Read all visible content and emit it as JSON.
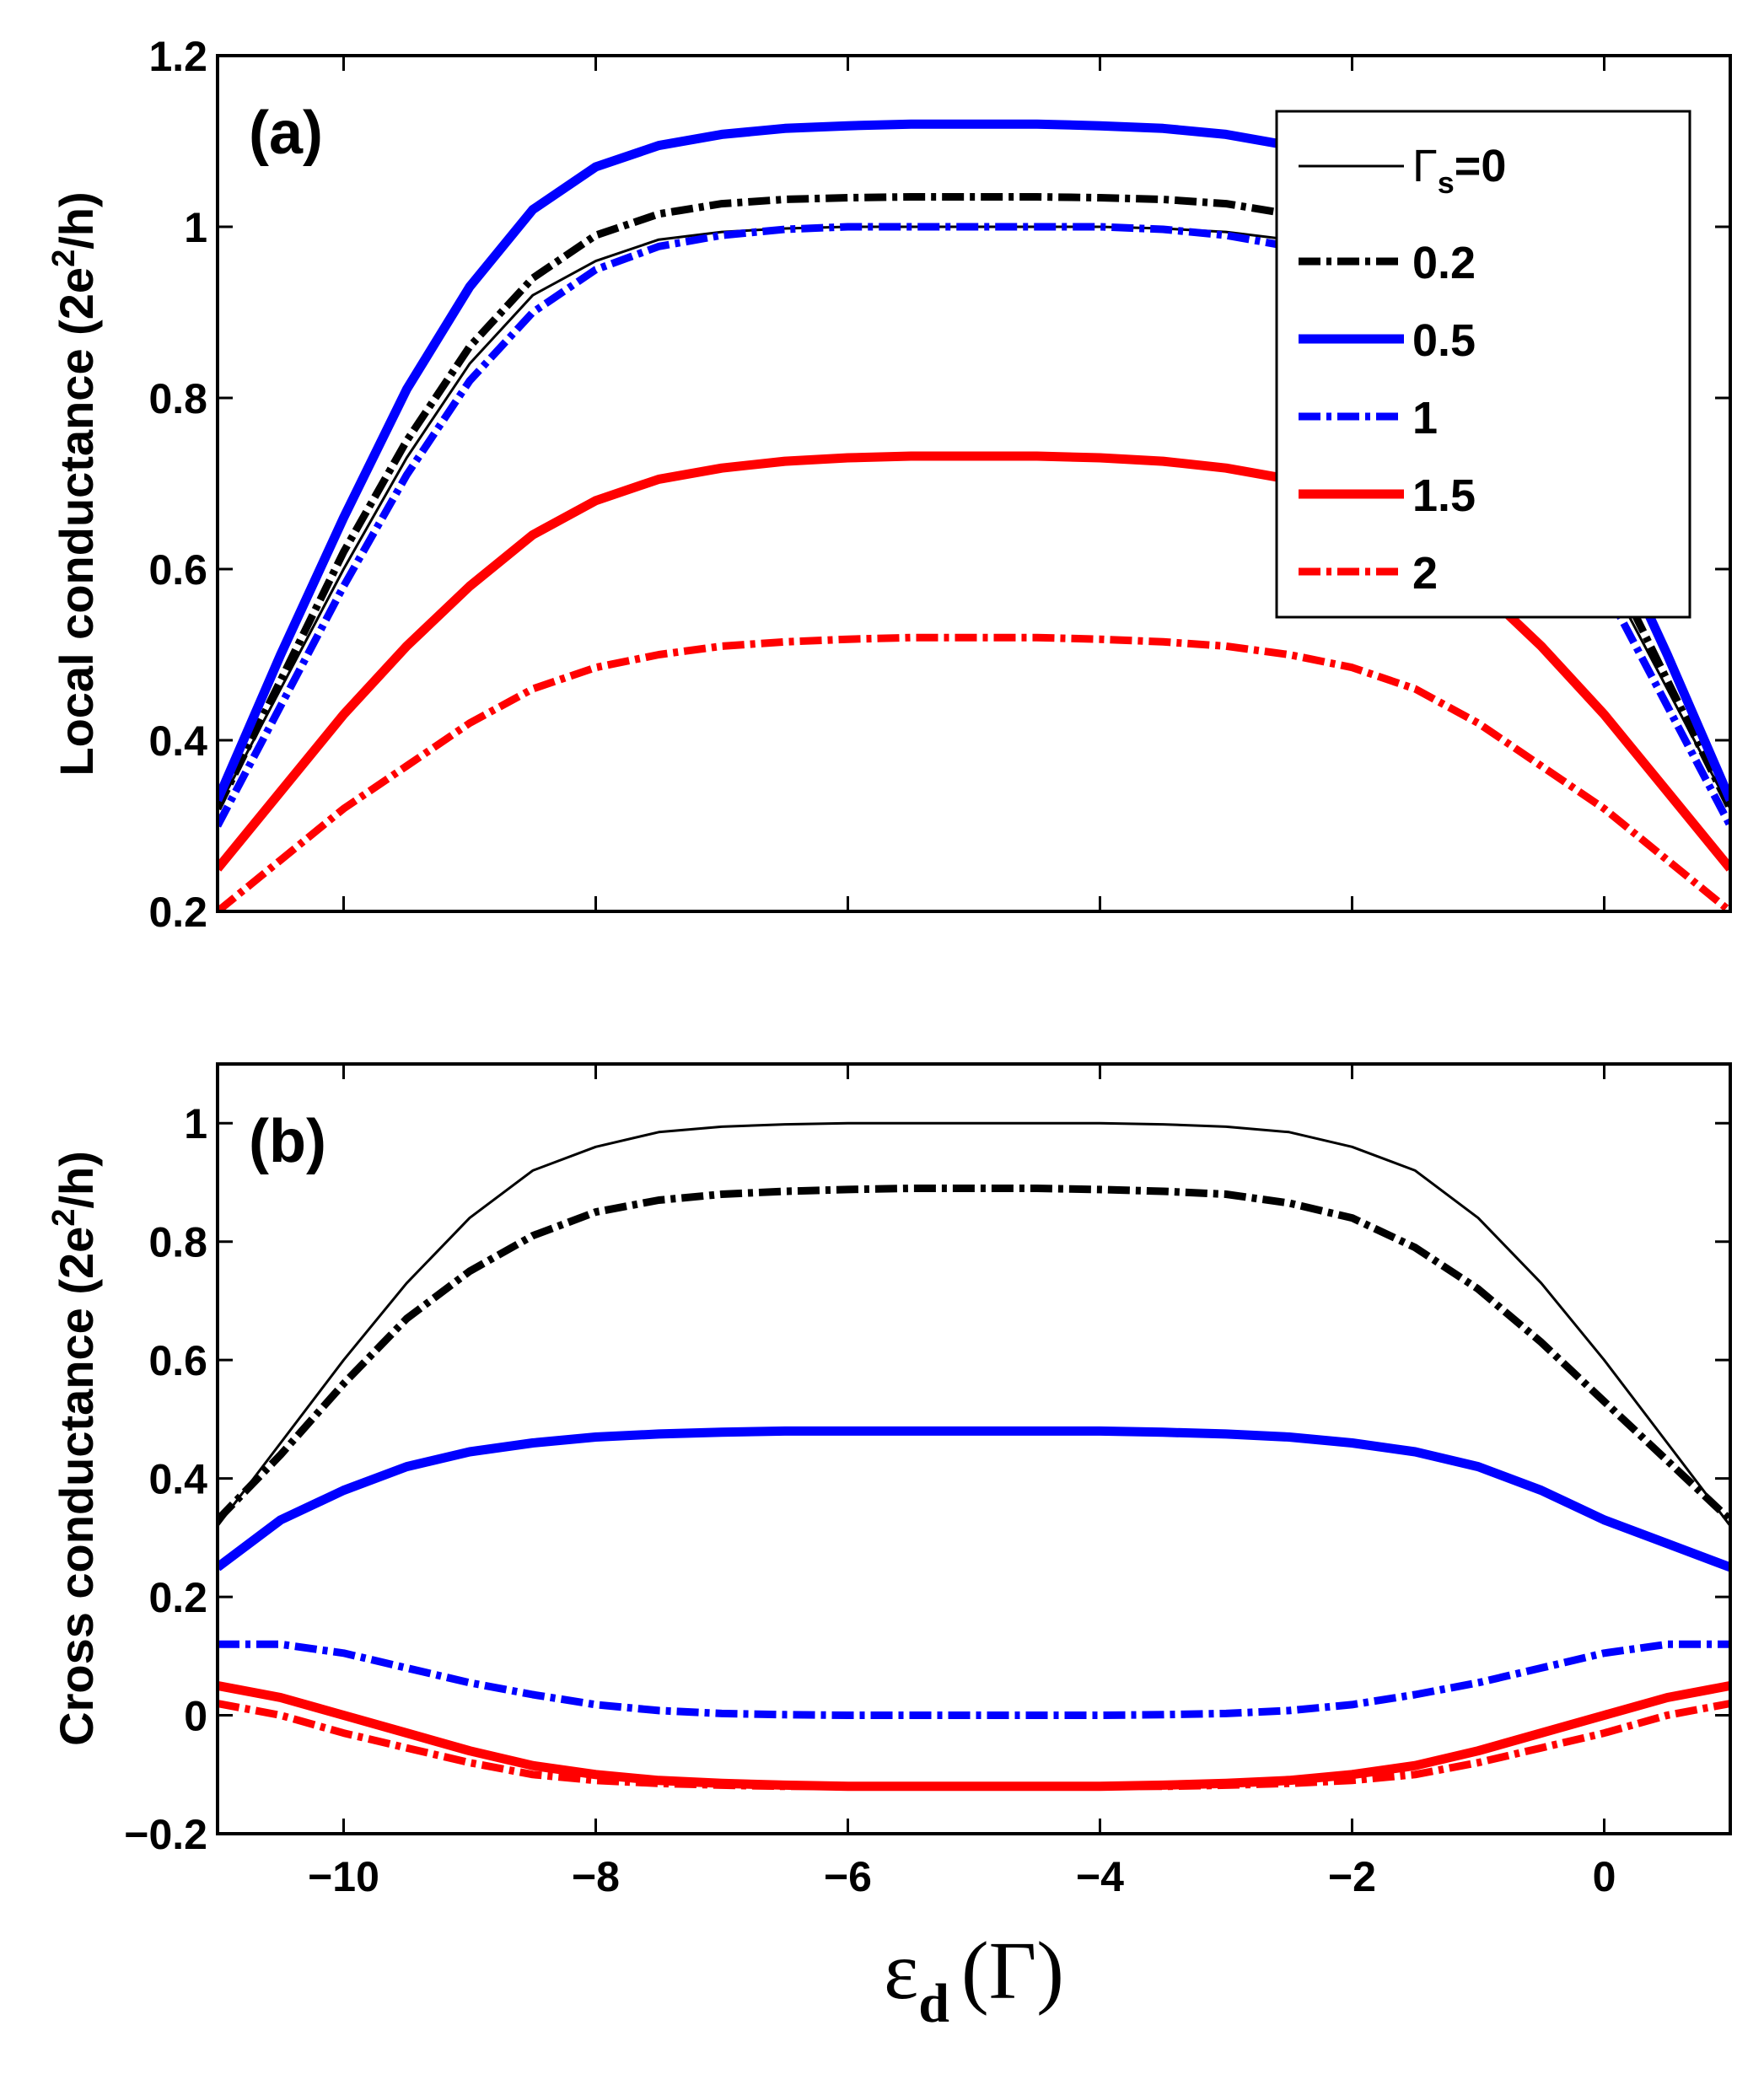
{
  "chart_data": [
    {
      "type": "line",
      "panel_label": "(a)",
      "title": "",
      "xlabel": "",
      "ylabel_prefix": "Local conductance  (2e",
      "ylabel_sup": "2",
      "ylabel_suffix": "/h)",
      "xlim": [
        -11,
        1
      ],
      "ylim": [
        0.2,
        1.2
      ],
      "xticks": [
        -10,
        -8,
        -6,
        -4,
        -2,
        0
      ],
      "yticks": [
        0.2,
        0.4,
        0.6,
        0.8,
        1.0,
        1.2
      ],
      "ytick_labels": [
        "0.2",
        "0.4",
        "0.6",
        "0.8",
        "1",
        "1.2"
      ],
      "grid": false,
      "legend_position": "top-right",
      "x": [
        -11,
        -10.5,
        -10,
        -9.5,
        -9,
        -8.5,
        -8,
        -7.5,
        -7,
        -6.5,
        -6,
        -5.5,
        -5,
        -4.5,
        -4,
        -3.5,
        -3,
        -2.5,
        -2,
        -1.5,
        -1,
        -0.5,
        0,
        0.5,
        1
      ],
      "series": [
        {
          "name": "Γs=0",
          "color": "#000000",
          "style": "solid-thin",
          "values": [
            0.32,
            0.46,
            0.6,
            0.73,
            0.84,
            0.92,
            0.96,
            0.985,
            0.994,
            0.998,
            1.0,
            1.0,
            1.0,
            1.0,
            1.0,
            0.998,
            0.994,
            0.985,
            0.96,
            0.92,
            0.84,
            0.73,
            0.6,
            0.46,
            0.32
          ]
        },
        {
          "name": "0.2",
          "color": "#000000",
          "style": "dashdot",
          "values": [
            0.32,
            0.47,
            0.62,
            0.75,
            0.86,
            0.94,
            0.99,
            1.015,
            1.027,
            1.032,
            1.034,
            1.035,
            1.035,
            1.035,
            1.034,
            1.032,
            1.027,
            1.015,
            0.99,
            0.94,
            0.86,
            0.75,
            0.62,
            0.47,
            0.32
          ]
        },
        {
          "name": "0.5",
          "color": "#0000ff",
          "style": "solid-thick",
          "values": [
            0.33,
            0.5,
            0.66,
            0.81,
            0.93,
            1.02,
            1.07,
            1.095,
            1.108,
            1.115,
            1.118,
            1.12,
            1.12,
            1.12,
            1.118,
            1.115,
            1.108,
            1.095,
            1.07,
            1.02,
            0.93,
            0.81,
            0.66,
            0.5,
            0.33
          ]
        },
        {
          "name": "1",
          "color": "#0000ff",
          "style": "dashdot",
          "values": [
            0.3,
            0.44,
            0.58,
            0.71,
            0.82,
            0.9,
            0.95,
            0.977,
            0.99,
            0.997,
            1.0,
            1.0,
            1.0,
            1.0,
            1.0,
            0.997,
            0.99,
            0.977,
            0.95,
            0.9,
            0.82,
            0.71,
            0.58,
            0.44,
            0.3
          ]
        },
        {
          "name": "1.5",
          "color": "#ff0000",
          "style": "solid-thick",
          "values": [
            0.25,
            0.34,
            0.43,
            0.51,
            0.58,
            0.64,
            0.68,
            0.705,
            0.718,
            0.726,
            0.73,
            0.732,
            0.732,
            0.732,
            0.73,
            0.726,
            0.718,
            0.705,
            0.68,
            0.64,
            0.58,
            0.51,
            0.43,
            0.34,
            0.25
          ]
        },
        {
          "name": "2",
          "color": "#ff0000",
          "style": "dashdot",
          "values": [
            0.2,
            0.26,
            0.32,
            0.37,
            0.42,
            0.46,
            0.485,
            0.5,
            0.51,
            0.515,
            0.518,
            0.52,
            0.52,
            0.52,
            0.518,
            0.515,
            0.51,
            0.5,
            0.485,
            0.46,
            0.42,
            0.37,
            0.32,
            0.26,
            0.2
          ]
        }
      ],
      "legend": {
        "entries": [
          {
            "label_prefix": "Γ",
            "label_sub": "s",
            "label_suffix": "=0"
          },
          {
            "label": "0.2"
          },
          {
            "label": "0.5"
          },
          {
            "label": "1"
          },
          {
            "label": "1.5"
          },
          {
            "label": "2"
          }
        ]
      }
    },
    {
      "type": "line",
      "panel_label": "(b)",
      "title": "",
      "xlabel_symbol": "ε",
      "xlabel_sub": "d",
      "xlabel_unit": "(Γ)",
      "ylabel_prefix": "Cross conductance  (2e",
      "ylabel_sup": "2",
      "ylabel_suffix": "/h)",
      "xlim": [
        -11,
        1
      ],
      "ylim": [
        -0.2,
        1.1
      ],
      "xticks": [
        -10,
        -8,
        -6,
        -4,
        -2,
        0
      ],
      "xtick_labels": [
        "−10",
        "−8",
        "−6",
        "−4",
        "−2",
        "0"
      ],
      "yticks": [
        -0.2,
        0,
        0.2,
        0.4,
        0.6,
        0.8,
        1.0
      ],
      "ytick_labels": [
        "−0.2",
        "0",
        "0.2",
        "0.4",
        "0.6",
        "0.8",
        "1"
      ],
      "grid": false,
      "x": [
        -11,
        -10.5,
        -10,
        -9.5,
        -9,
        -8.5,
        -8,
        -7.5,
        -7,
        -6.5,
        -6,
        -5.5,
        -5,
        -4.5,
        -4,
        -3.5,
        -3,
        -2.5,
        -2,
        -1.5,
        -1,
        -0.5,
        0,
        0.5,
        1
      ],
      "series": [
        {
          "name": "Γs=0",
          "color": "#000000",
          "style": "solid-thin",
          "values": [
            0.32,
            0.46,
            0.6,
            0.73,
            0.84,
            0.92,
            0.96,
            0.985,
            0.994,
            0.998,
            1.0,
            1.0,
            1.0,
            1.0,
            1.0,
            0.998,
            0.994,
            0.985,
            0.96,
            0.92,
            0.84,
            0.73,
            0.6,
            0.46,
            0.32
          ]
        },
        {
          "name": "0.2",
          "color": "#000000",
          "style": "dashdot",
          "values": [
            0.33,
            0.44,
            0.56,
            0.67,
            0.75,
            0.81,
            0.85,
            0.87,
            0.88,
            0.885,
            0.888,
            0.89,
            0.89,
            0.89,
            0.888,
            0.885,
            0.88,
            0.865,
            0.84,
            0.79,
            0.72,
            0.63,
            0.53,
            0.43,
            0.33
          ]
        },
        {
          "name": "0.5",
          "color": "#0000ff",
          "style": "solid-thick",
          "values": [
            0.25,
            0.33,
            0.38,
            0.42,
            0.445,
            0.46,
            0.47,
            0.475,
            0.478,
            0.48,
            0.48,
            0.48,
            0.48,
            0.48,
            0.48,
            0.478,
            0.475,
            0.47,
            0.46,
            0.445,
            0.42,
            0.38,
            0.33,
            0.29,
            0.25
          ]
        },
        {
          "name": "1",
          "color": "#0000ff",
          "style": "dashdot",
          "values": [
            0.12,
            0.12,
            0.105,
            0.08,
            0.055,
            0.035,
            0.018,
            0.008,
            0.003,
            0.001,
            0.0,
            0.0,
            0.0,
            0.0,
            0.0,
            0.001,
            0.003,
            0.008,
            0.018,
            0.035,
            0.055,
            0.08,
            0.105,
            0.12,
            0.12
          ]
        },
        {
          "name": "1.5",
          "color": "#ff0000",
          "style": "solid-thick",
          "values": [
            0.05,
            0.03,
            0.0,
            -0.03,
            -0.06,
            -0.085,
            -0.1,
            -0.11,
            -0.115,
            -0.118,
            -0.12,
            -0.12,
            -0.12,
            -0.12,
            -0.12,
            -0.118,
            -0.115,
            -0.11,
            -0.1,
            -0.085,
            -0.06,
            -0.03,
            0.0,
            0.03,
            0.05
          ]
        },
        {
          "name": "2",
          "color": "#ff0000",
          "style": "dashdot",
          "values": [
            0.02,
            0.0,
            -0.03,
            -0.055,
            -0.08,
            -0.1,
            -0.11,
            -0.115,
            -0.118,
            -0.12,
            -0.12,
            -0.12,
            -0.12,
            -0.12,
            -0.12,
            -0.12,
            -0.118,
            -0.115,
            -0.11,
            -0.1,
            -0.08,
            -0.055,
            -0.03,
            0.0,
            0.02
          ]
        }
      ]
    }
  ]
}
